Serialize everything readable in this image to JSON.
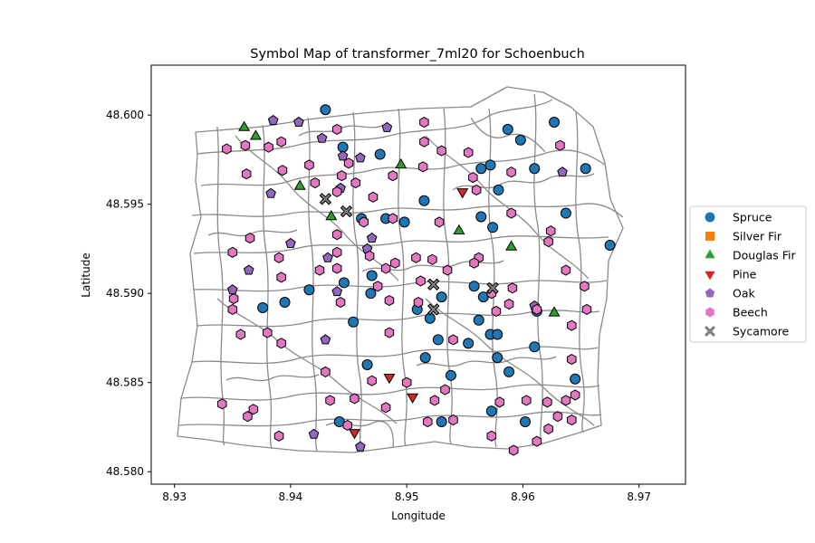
{
  "chart_data": {
    "type": "scatter",
    "title": "Symbol Map of transformer_7ml20 for Schoenbuch",
    "xlabel": "Longitude",
    "ylabel": "Latitude",
    "xlim": [
      8.928,
      8.974
    ],
    "ylim": [
      48.5793,
      48.6028
    ],
    "xticks": [
      8.93,
      8.94,
      8.95,
      8.96,
      8.97
    ],
    "yticks": [
      48.58,
      48.585,
      48.59,
      48.595,
      48.6
    ],
    "xtick_labels": [
      "8.93",
      "8.94",
      "8.95",
      "8.96",
      "8.97"
    ],
    "ytick_labels": [
      "48.580",
      "48.585",
      "48.590",
      "48.595",
      "48.600"
    ],
    "grid": false,
    "legend_position": "right-outside",
    "series": [
      {
        "name": "Spruce",
        "marker": "circle",
        "color": "#1f77b4",
        "points": [
          [
            8.943,
            48.6003
          ],
          [
            8.9445,
            48.5982
          ],
          [
            8.9477,
            48.5978
          ],
          [
            8.9587,
            48.5992
          ],
          [
            8.9598,
            48.5986
          ],
          [
            8.9627,
            48.5996
          ],
          [
            8.9564,
            48.597
          ],
          [
            8.9572,
            48.5972
          ],
          [
            8.961,
            48.597
          ],
          [
            8.9654,
            48.597
          ],
          [
            8.9579,
            48.5958
          ],
          [
            8.9515,
            48.5952
          ],
          [
            8.9564,
            48.5943
          ],
          [
            8.9574,
            48.5937
          ],
          [
            8.9637,
            48.5945
          ],
          [
            8.9675,
            48.5927
          ],
          [
            8.9461,
            48.5942
          ],
          [
            8.9482,
            48.5942
          ],
          [
            8.9498,
            48.594
          ],
          [
            8.9446,
            48.5906
          ],
          [
            8.947,
            48.591
          ],
          [
            8.9416,
            48.5902
          ],
          [
            8.9469,
            48.59
          ],
          [
            8.9376,
            48.5892
          ],
          [
            8.9395,
            48.5895
          ],
          [
            8.9509,
            48.5891
          ],
          [
            8.952,
            48.5886
          ],
          [
            8.953,
            48.5898
          ],
          [
            8.9558,
            48.5904
          ],
          [
            8.9562,
            48.5885
          ],
          [
            8.9566,
            48.5898
          ],
          [
            8.9454,
            48.5884
          ],
          [
            8.9527,
            48.5874
          ],
          [
            8.9553,
            48.5872
          ],
          [
            8.9572,
            48.5877
          ],
          [
            8.9578,
            48.5877
          ],
          [
            8.961,
            48.587
          ],
          [
            8.9466,
            48.586
          ],
          [
            8.9516,
            48.5864
          ],
          [
            8.9538,
            48.5854
          ],
          [
            8.9578,
            48.5864
          ],
          [
            8.9588,
            48.5856
          ],
          [
            8.9645,
            48.5852
          ],
          [
            8.9442,
            48.5828
          ],
          [
            8.953,
            48.5828
          ],
          [
            8.9573,
            48.5834
          ],
          [
            8.9602,
            48.5828
          ],
          [
            8.9612,
            48.589
          ]
        ]
      },
      {
        "name": "Silver Fir",
        "marker": "square",
        "color": "#ff7f0e",
        "points": []
      },
      {
        "name": "Douglas Fir",
        "marker": "triangle-up",
        "color": "#2ca02c",
        "points": [
          [
            8.936,
            48.5993
          ],
          [
            8.937,
            48.5988
          ],
          [
            8.9495,
            48.5972
          ],
          [
            8.9408,
            48.596
          ],
          [
            8.9435,
            48.5943
          ],
          [
            8.9545,
            48.5935
          ],
          [
            8.959,
            48.5926
          ],
          [
            8.9627,
            48.5889
          ]
        ]
      },
      {
        "name": "Pine",
        "marker": "triangle-down",
        "color": "#d62728",
        "points": [
          [
            8.9548,
            48.5957
          ],
          [
            8.9485,
            48.5853
          ],
          [
            8.9505,
            48.5842
          ],
          [
            8.9455,
            48.5822
          ]
        ]
      },
      {
        "name": "Oak",
        "marker": "pentagon",
        "color": "#9467bd",
        "points": [
          [
            8.9385,
            48.5997
          ],
          [
            8.9407,
            48.5996
          ],
          [
            8.9427,
            48.5987
          ],
          [
            8.9445,
            48.5977
          ],
          [
            8.946,
            48.5976
          ],
          [
            8.9483,
            48.5993
          ],
          [
            8.9383,
            48.5956
          ],
          [
            8.9443,
            48.5959
          ],
          [
            8.9634,
            48.5968
          ],
          [
            8.94,
            48.5928
          ],
          [
            8.947,
            48.5931
          ],
          [
            8.9466,
            48.5925
          ],
          [
            8.9364,
            48.5913
          ],
          [
            8.9432,
            48.592
          ],
          [
            8.935,
            48.5902
          ],
          [
            8.944,
            48.5901
          ],
          [
            8.943,
            48.5874
          ],
          [
            8.942,
            48.5821
          ],
          [
            8.946,
            48.5814
          ],
          [
            8.961,
            48.5893
          ]
        ]
      },
      {
        "name": "Beech",
        "marker": "hexagon",
        "color": "#e377c2",
        "points": [
          [
            8.944,
            48.5992
          ],
          [
            8.9515,
            48.5996
          ],
          [
            8.9632,
            48.5983
          ],
          [
            8.9345,
            48.5981
          ],
          [
            8.9361,
            48.5983
          ],
          [
            8.9381,
            48.5982
          ],
          [
            8.9392,
            48.5985
          ],
          [
            8.9416,
            48.5972
          ],
          [
            8.945,
            48.5973
          ],
          [
            8.9515,
            48.5985
          ],
          [
            8.953,
            48.598
          ],
          [
            8.9553,
            48.5979
          ],
          [
            8.959,
            48.5968
          ],
          [
            8.9362,
            48.5967
          ],
          [
            8.9393,
            48.5969
          ],
          [
            8.9444,
            48.5966
          ],
          [
            8.9456,
            48.5962
          ],
          [
            8.9488,
            48.5966
          ],
          [
            8.9514,
            48.5971
          ],
          [
            8.9557,
            48.5965
          ],
          [
            8.9421,
            48.5962
          ],
          [
            8.944,
            48.5957
          ],
          [
            8.9471,
            48.5954
          ],
          [
            8.956,
            48.5958
          ],
          [
            8.9488,
            48.5942
          ],
          [
            8.9463,
            48.594
          ],
          [
            8.9528,
            48.594
          ],
          [
            8.959,
            48.5945
          ],
          [
            8.9365,
            48.5931
          ],
          [
            8.944,
            48.5933
          ],
          [
            8.9624,
            48.5935
          ],
          [
            8.9622,
            48.5929
          ],
          [
            8.935,
            48.5923
          ],
          [
            8.944,
            48.5923
          ],
          [
            8.9468,
            48.5921
          ],
          [
            8.9508,
            48.592
          ],
          [
            8.9522,
            48.5919
          ],
          [
            8.9562,
            48.592
          ],
          [
            8.9558,
            48.5917
          ],
          [
            8.939,
            48.592
          ],
          [
            8.9425,
            48.5913
          ],
          [
            8.944,
            48.5914
          ],
          [
            8.9482,
            48.5914
          ],
          [
            8.949,
            48.5917
          ],
          [
            8.9535,
            48.5913
          ],
          [
            8.9637,
            48.5913
          ],
          [
            8.9392,
            48.5909
          ],
          [
            8.9512,
            48.5907
          ],
          [
            8.9591,
            48.5903
          ],
          [
            8.9653,
            48.5904
          ],
          [
            8.9351,
            48.5897
          ],
          [
            8.9443,
            48.5895
          ],
          [
            8.9475,
            48.5904
          ],
          [
            8.9485,
            48.5896
          ],
          [
            8.951,
            48.5895
          ],
          [
            8.9573,
            48.59
          ],
          [
            8.9588,
            48.5894
          ],
          [
            8.9612,
            48.5891
          ],
          [
            8.935,
            48.5891
          ],
          [
            8.9577,
            48.589
          ],
          [
            8.9655,
            48.5891
          ],
          [
            8.9642,
            48.5882
          ],
          [
            8.9357,
            48.5877
          ],
          [
            8.938,
            48.5878
          ],
          [
            8.9392,
            48.5872
          ],
          [
            8.9485,
            48.5878
          ],
          [
            8.954,
            48.5874
          ],
          [
            8.9642,
            48.5863
          ],
          [
            8.943,
            48.5856
          ],
          [
            8.947,
            48.5851
          ],
          [
            8.95,
            48.585
          ],
          [
            8.9533,
            48.5846
          ],
          [
            8.9434,
            48.584
          ],
          [
            8.9455,
            48.5841
          ],
          [
            8.9482,
            48.5836
          ],
          [
            8.9524,
            48.584
          ],
          [
            8.958,
            48.5839
          ],
          [
            8.9603,
            48.584
          ],
          [
            8.9621,
            48.5839
          ],
          [
            8.9637,
            48.584
          ],
          [
            8.9645,
            48.5843
          ],
          [
            8.9341,
            48.5838
          ],
          [
            8.9368,
            48.5835
          ],
          [
            8.9363,
            48.5831
          ],
          [
            8.9449,
            48.5826
          ],
          [
            8.9518,
            48.5828
          ],
          [
            8.954,
            48.5829
          ],
          [
            8.963,
            48.5831
          ],
          [
            8.9622,
            48.5824
          ],
          [
            8.9642,
            48.5829
          ],
          [
            8.939,
            48.582
          ],
          [
            8.9573,
            48.582
          ],
          [
            8.9612,
            48.5817
          ],
          [
            8.9592,
            48.5812
          ]
        ]
      },
      {
        "name": "Sycamore",
        "marker": "x-filled",
        "color": "#7f7f7f",
        "points": [
          [
            8.943,
            48.5953
          ],
          [
            8.9448,
            48.5946
          ],
          [
            8.9523,
            48.5905
          ],
          [
            8.9574,
            48.5903
          ],
          [
            8.9523,
            48.5891
          ]
        ]
      }
    ]
  }
}
